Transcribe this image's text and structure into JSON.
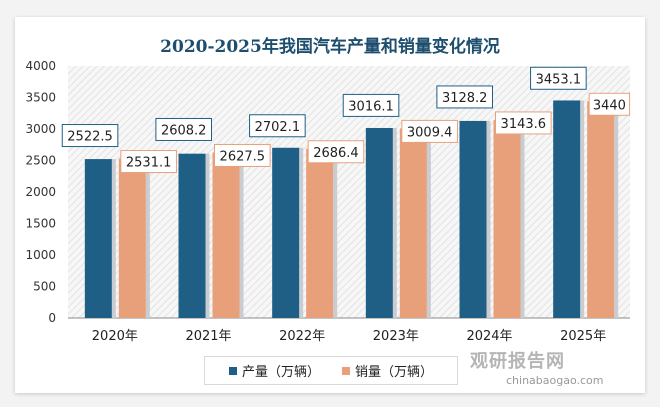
{
  "chart_data": {
    "type": "bar",
    "title": "2020-2025年我国汽车产量和销量变化情况",
    "categories": [
      "2020年",
      "2021年",
      "2022年",
      "2023年",
      "2024年",
      "2025年"
    ],
    "series": [
      {
        "name": "产量（万辆）",
        "color": "#1f5f86",
        "values": [
          2522.5,
          2608.2,
          2702.1,
          3016.1,
          3128.2,
          3453.1
        ],
        "labels": [
          "2522.5",
          "2608.2",
          "2702.1",
          "3016.1",
          "3128.2",
          "3453.1"
        ]
      },
      {
        "name": "销量（万辆）",
        "color": "#e8a07a",
        "values": [
          2531.1,
          2627.5,
          2686.4,
          3009.4,
          3143.6,
          3440
        ],
        "labels": [
          "2531.1",
          "2627.5",
          "2686.4",
          "3009.4",
          "3143.6",
          "3440"
        ]
      }
    ],
    "ylim": [
      0,
      4000
    ],
    "yticks": [
      "0",
      "500",
      "1000",
      "1500",
      "2000",
      "2500",
      "3000",
      "3500",
      "4000"
    ],
    "grid": false,
    "legend": "bottom"
  },
  "watermark": {
    "cn": "观研报告网",
    "en": "chinabaogao.com"
  }
}
